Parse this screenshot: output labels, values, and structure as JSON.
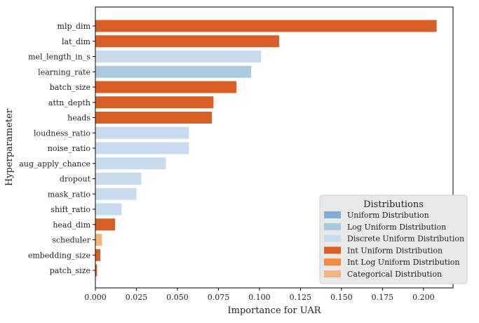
{
  "chart_data": {
    "type": "bar",
    "orientation": "horizontal",
    "xlabel": "Importance for UAR",
    "ylabel": "Hyperparameter",
    "xlim": [
      0.0,
      0.218
    ],
    "xticks": [
      "0.000",
      "0.025",
      "0.050",
      "0.075",
      "0.100",
      "0.125",
      "0.150",
      "0.175",
      "0.200"
    ],
    "bars": [
      {
        "label": "mlp_dim",
        "value": 0.208,
        "dist": "int_uniform"
      },
      {
        "label": "lat_dim",
        "value": 0.112,
        "dist": "int_uniform"
      },
      {
        "label": "mel_length_in_s",
        "value": 0.101,
        "dist": "discrete_uniform"
      },
      {
        "label": "learning_rate",
        "value": 0.095,
        "dist": "log_uniform"
      },
      {
        "label": "batch_size",
        "value": 0.086,
        "dist": "int_uniform"
      },
      {
        "label": "attn_depth",
        "value": 0.072,
        "dist": "int_uniform"
      },
      {
        "label": "heads",
        "value": 0.071,
        "dist": "int_uniform"
      },
      {
        "label": "loudness_ratio",
        "value": 0.057,
        "dist": "discrete_uniform"
      },
      {
        "label": "noise_ratio",
        "value": 0.057,
        "dist": "discrete_uniform"
      },
      {
        "label": "aug_apply_chance",
        "value": 0.043,
        "dist": "discrete_uniform"
      },
      {
        "label": "dropout",
        "value": 0.028,
        "dist": "discrete_uniform"
      },
      {
        "label": "mask_ratio",
        "value": 0.025,
        "dist": "discrete_uniform"
      },
      {
        "label": "shift_ratio",
        "value": 0.016,
        "dist": "discrete_uniform"
      },
      {
        "label": "head_dim",
        "value": 0.012,
        "dist": "int_uniform"
      },
      {
        "label": "scheduler",
        "value": 0.004,
        "dist": "categorical"
      },
      {
        "label": "embedding_size",
        "value": 0.003,
        "dist": "int_uniform"
      },
      {
        "label": "patch_size",
        "value": 0.001,
        "dist": "int_uniform"
      }
    ],
    "legend": {
      "title": "Distributions",
      "placement": "lower-right",
      "entries": [
        {
          "key": "uniform",
          "label": "Uniform Distribution",
          "color": "#7eaed6"
        },
        {
          "key": "log_uniform",
          "label": "Log Uniform Distribution",
          "color": "#a9c9e0"
        },
        {
          "key": "discrete_uniform",
          "label": "Discrete Uniform Distribution",
          "color": "#c8daee"
        },
        {
          "key": "int_uniform",
          "label": "Int Uniform Distribution",
          "color": "#d95f27"
        },
        {
          "key": "int_log_uniform",
          "label": "Int Log Uniform Distribution",
          "color": "#ee8b45"
        },
        {
          "key": "categorical",
          "label": "Categorical Distribution",
          "color": "#f5b57a"
        }
      ]
    }
  }
}
